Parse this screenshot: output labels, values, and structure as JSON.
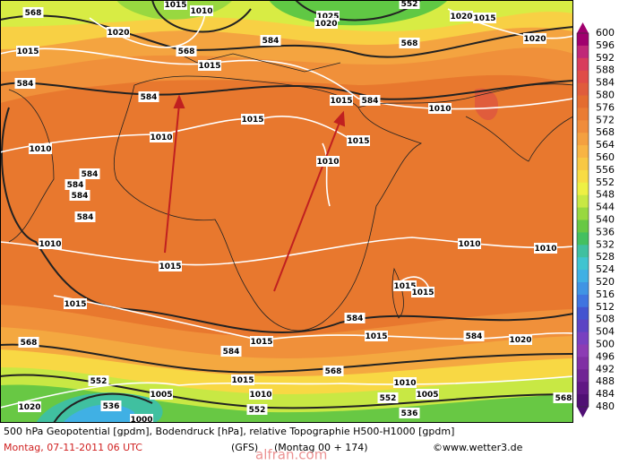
{
  "map": {
    "caption": "500 hPa Geopotential [gpdm], Bodendruck [hPa], relative Topographie H500-H1000 [gpdm]",
    "date": "Montag, 07-11-2011   06 UTC",
    "model": "(GFS)",
    "run": "(Montag 00 + 174)",
    "source": "©www.wetter3.de",
    "watermark": "alfran.com",
    "colorbar": {
      "labels": [
        600,
        596,
        592,
        588,
        584,
        580,
        576,
        572,
        568,
        564,
        560,
        556,
        552,
        548,
        544,
        540,
        536,
        532,
        528,
        524,
        520,
        516,
        512,
        508,
        504,
        500,
        496,
        492,
        488,
        484,
        480
      ],
      "colors": [
        "#a0006e",
        "#c02878",
        "#d83c5c",
        "#e04c48",
        "#e05c3c",
        "#e46c30",
        "#ea7c34",
        "#f08c3c",
        "#f4a040",
        "#f8b444",
        "#f8c844",
        "#f8dc44",
        "#eef044",
        "#c8e844",
        "#98d840",
        "#68c844",
        "#44c060",
        "#40c0a0",
        "#40c4d0",
        "#40b0e4",
        "#4094e4",
        "#4074e0",
        "#4454d0",
        "#5c44c4",
        "#7840c0",
        "#8c3cb4",
        "#8030a4",
        "#702494",
        "#601884",
        "#501074"
      ]
    },
    "contour_labels": [
      568,
      1010,
      1015,
      552,
      568,
      584,
      568,
      1015,
      584,
      584,
      1015,
      584,
      1010,
      1015,
      1010,
      1015,
      1010,
      584,
      584,
      584,
      584,
      1010,
      1010,
      1015,
      1010,
      1010,
      1015,
      1015,
      1015,
      584,
      584,
      1015,
      1015,
      1020,
      568,
      584,
      568,
      552,
      1015,
      1010,
      552,
      1005,
      1010,
      1005,
      1020,
      536,
      552,
      536,
      1000,
      568,
      1020,
      1015,
      1020,
      1020,
      1015,
      1025,
      1020
    ]
  }
}
